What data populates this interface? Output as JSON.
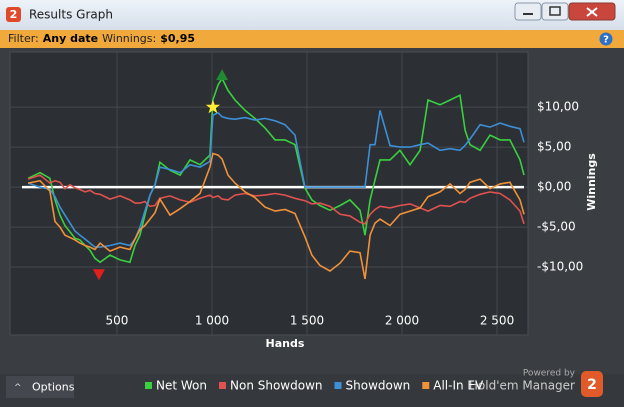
{
  "window": {
    "logo": "2",
    "title": "Results Graph"
  },
  "filter": {
    "label": "Filter:",
    "date": "Any date",
    "winnings_label": "Winnings:",
    "winnings": "$0,95",
    "help": "?"
  },
  "chart_data": {
    "type": "line",
    "x_label": "Hands",
    "y_label": "Winnings",
    "x": [
      32,
      95,
      147,
      174,
      200,
      226,
      253,
      279,
      305,
      332,
      358,
      384,
      411,
      463,
      516,
      568,
      595,
      621,
      647,
      674,
      700,
      726,
      779,
      832,
      884,
      937,
      989,
      1005,
      1032,
      1053,
      1084,
      1121,
      1174,
      1226,
      1279,
      1332,
      1384,
      1437,
      1489,
      1526,
      1568,
      1621,
      1674,
      1726,
      1779,
      1805,
      1832,
      1858,
      1884,
      1937,
      1989,
      2042,
      2095,
      2137,
      2200,
      2253,
      2305,
      2332,
      2358,
      2411,
      2463,
      2516,
      2568,
      2621,
      2642
    ],
    "series": [
      {
        "name": "Net Won",
        "color": "#39d13f",
        "values": [
          1.1,
          1.8,
          1.1,
          -1.6,
          -3.5,
          -4.8,
          -5.6,
          -6.4,
          -6.6,
          -7.3,
          -7.9,
          -8.9,
          -9.4,
          -8.5,
          -9.1,
          -9.4,
          -7.3,
          -6,
          -3.5,
          -1,
          0.3,
          3.1,
          2.1,
          1.5,
          3.4,
          2.8,
          4,
          10.9,
          12.8,
          13.6,
          12.1,
          10.9,
          9.6,
          8.6,
          7.4,
          5.9,
          5.9,
          5.3,
          -0.1,
          -1.6,
          -2.3,
          -2.9,
          -2.3,
          -1.6,
          -2.9,
          -6,
          -1.6,
          0.9,
          3.4,
          3.4,
          4.6,
          2.8,
          4.6,
          10.9,
          10.3,
          10.9,
          11.5,
          7.1,
          5.3,
          4.6,
          6.5,
          5.9,
          5.9,
          3.4,
          1.5
        ]
      },
      {
        "name": "Non Showdown",
        "color": "#e0524f",
        "values": [
          1,
          1.5,
          0.5,
          0.8,
          0.6,
          -0.2,
          0.3,
          -0.1,
          -0.3,
          -0.6,
          -0.4,
          -0.8,
          -0.9,
          -1.5,
          -1.1,
          -1.6,
          -2,
          -2,
          -1.8,
          -2.4,
          -2.3,
          -1.4,
          -1.1,
          -1.6,
          -1.9,
          -1.4,
          -1,
          -1.3,
          -1.1,
          -1.5,
          -1.6,
          -1,
          -0.8,
          -1.1,
          -1,
          -0.8,
          -1,
          -1.4,
          -1.7,
          -2.1,
          -2,
          -2.4,
          -3.4,
          -3.6,
          -4.4,
          -4.6,
          -3.4,
          -2.8,
          -2.4,
          -2.6,
          -2.3,
          -2.1,
          -2.6,
          -3,
          -2.3,
          -2.4,
          -1.8,
          -1.9,
          -1.4,
          -0.9,
          -0.6,
          -0.8,
          -1.6,
          -3,
          -4.6
        ]
      },
      {
        "name": "Showdown",
        "color": "#3d8fd6",
        "values": [
          0.5,
          0,
          -0.3,
          -1.2,
          -2.5,
          -3.5,
          -4.5,
          -5.5,
          -6,
          -6.5,
          -7,
          -7.5,
          -7.5,
          -7.3,
          -7,
          -7.3,
          -6.5,
          -5,
          -3,
          -1,
          0.3,
          2.5,
          2.2,
          1.8,
          2.8,
          2.5,
          3.2,
          9,
          9.3,
          8.8,
          8.6,
          8.5,
          8.7,
          8.4,
          8.6,
          8.3,
          7.8,
          6.5,
          0,
          0,
          0,
          0,
          0,
          0,
          0,
          0,
          5.3,
          5.3,
          9.6,
          5.2,
          5,
          5,
          5.3,
          5.5,
          4.6,
          4.8,
          4.6,
          5.2,
          6,
          7.8,
          7.5,
          8,
          7.6,
          7.3,
          5.6
        ]
      },
      {
        "name": "All-In EV",
        "color": "#f0923a",
        "values": [
          0.5,
          0.8,
          -0.5,
          -4.3,
          -5,
          -6,
          -6.3,
          -6.6,
          -7,
          -7.3,
          -7.5,
          -7.8,
          -7,
          -8,
          -7.5,
          -7.8,
          -6.5,
          -5.3,
          -4.8,
          -4,
          -3.2,
          -1.5,
          -3.5,
          -2.7,
          -1.8,
          -0.8,
          2.5,
          4.2,
          4,
          3.5,
          1.5,
          0.5,
          -0.6,
          -1.3,
          -2.5,
          -3,
          -2.8,
          -3.3,
          -6.2,
          -8.5,
          -9.8,
          -10.5,
          -9.5,
          -8,
          -8.2,
          -11.5,
          -6,
          -4.5,
          -4,
          -4.8,
          -3.4,
          -3,
          -2.6,
          -1.2,
          -0.6,
          0.4,
          -0.8,
          -0.3,
          0.6,
          1,
          -0.2,
          0.4,
          0.6,
          -1.6,
          -3.4
        ]
      }
    ],
    "markers": [
      {
        "x": 1005,
        "y": 10,
        "shape": "star",
        "color": "#ffee33"
      },
      {
        "x": 1053,
        "y": 14,
        "shape": "triangle-up",
        "color": "#1f8a32"
      },
      {
        "x": 405,
        "y": -10.9,
        "shape": "triangle-down",
        "color": "#e0201c"
      }
    ],
    "xlim": [
      -63,
      2663
    ],
    "ylim": [
      -18.5,
      16.9
    ],
    "xticks": [
      500,
      {
        "value": 1000,
        "label": "1 000"
      },
      {
        "value": 1500,
        "label": "1 500"
      },
      {
        "value": 2000,
        "label": "2 000"
      },
      {
        "value": 2500,
        "label": "2 500"
      }
    ],
    "yticks": [
      {
        "value": 10,
        "label": "$10,00"
      },
      {
        "value": 5,
        "label": "$5,00"
      },
      {
        "value": 0,
        "label": "$0,00"
      },
      {
        "value": -5,
        "label": "-$5,00"
      },
      {
        "value": -10,
        "label": "-$10,00"
      }
    ],
    "grid": true,
    "zero_line": true,
    "legend": "bottom"
  },
  "footer": {
    "options": "Options",
    "powered_by": "Powered by",
    "brand": "Hold'em Manager",
    "brand_logo": "2"
  }
}
